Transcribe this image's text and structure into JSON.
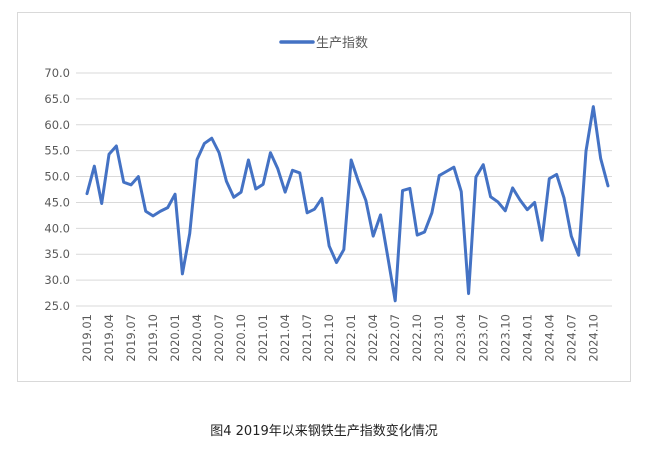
{
  "caption": "图4 2019年以来钢铁生产指数变化情况",
  "chart_data": {
    "type": "line",
    "title": "",
    "xlabel": "",
    "ylabel": "",
    "ylim": [
      25.0,
      70.0
    ],
    "y_ticks": [
      "25.0",
      "30.0",
      "35.0",
      "40.0",
      "45.0",
      "50.0",
      "55.0",
      "60.0",
      "65.0",
      "70.0"
    ],
    "y_tick_values": [
      25,
      30,
      35,
      40,
      45,
      50,
      55,
      60,
      65,
      70
    ],
    "x_tick_labels": [
      "2019.01",
      "2019.04",
      "2019.07",
      "2019.10",
      "2020.01",
      "2020.04",
      "2020.07",
      "2020.10",
      "2021.01",
      "2021.04",
      "2021.07",
      "2021.10",
      "2022.01",
      "2022.04",
      "2022.07",
      "2022.10",
      "2023.01",
      "2023.04",
      "2023.07",
      "2023.10",
      "2024.01",
      "2024.04",
      "2024.07",
      "2024.10"
    ],
    "grid": "horizontal",
    "legend_position": "top-center",
    "series": [
      {
        "name": "生产指数",
        "color": "#4472C4",
        "values": [
          46.7,
          52.0,
          44.8,
          54.3,
          55.9,
          48.9,
          48.4,
          50.0,
          43.3,
          42.4,
          43.3,
          44.0,
          46.6,
          31.2,
          39.0,
          53.3,
          56.4,
          57.4,
          54.6,
          49.1,
          46.0,
          47.0,
          53.2,
          47.6,
          48.5,
          54.6,
          51.5,
          47.0,
          51.2,
          50.7,
          43.0,
          43.7,
          45.8,
          36.6,
          33.4,
          35.9,
          53.2,
          49.0,
          45.4,
          38.5,
          42.6,
          34.4,
          26.0,
          47.3,
          47.7,
          38.7,
          39.3,
          43.0,
          50.2,
          51.0,
          51.8,
          47.1,
          27.4,
          49.9,
          52.3,
          46.1,
          45.1,
          43.4,
          47.8,
          45.5,
          43.6,
          45.0,
          37.7,
          49.6,
          50.4,
          45.9,
          38.5,
          34.8,
          54.9,
          63.5,
          53.5,
          48.2
        ]
      }
    ]
  }
}
